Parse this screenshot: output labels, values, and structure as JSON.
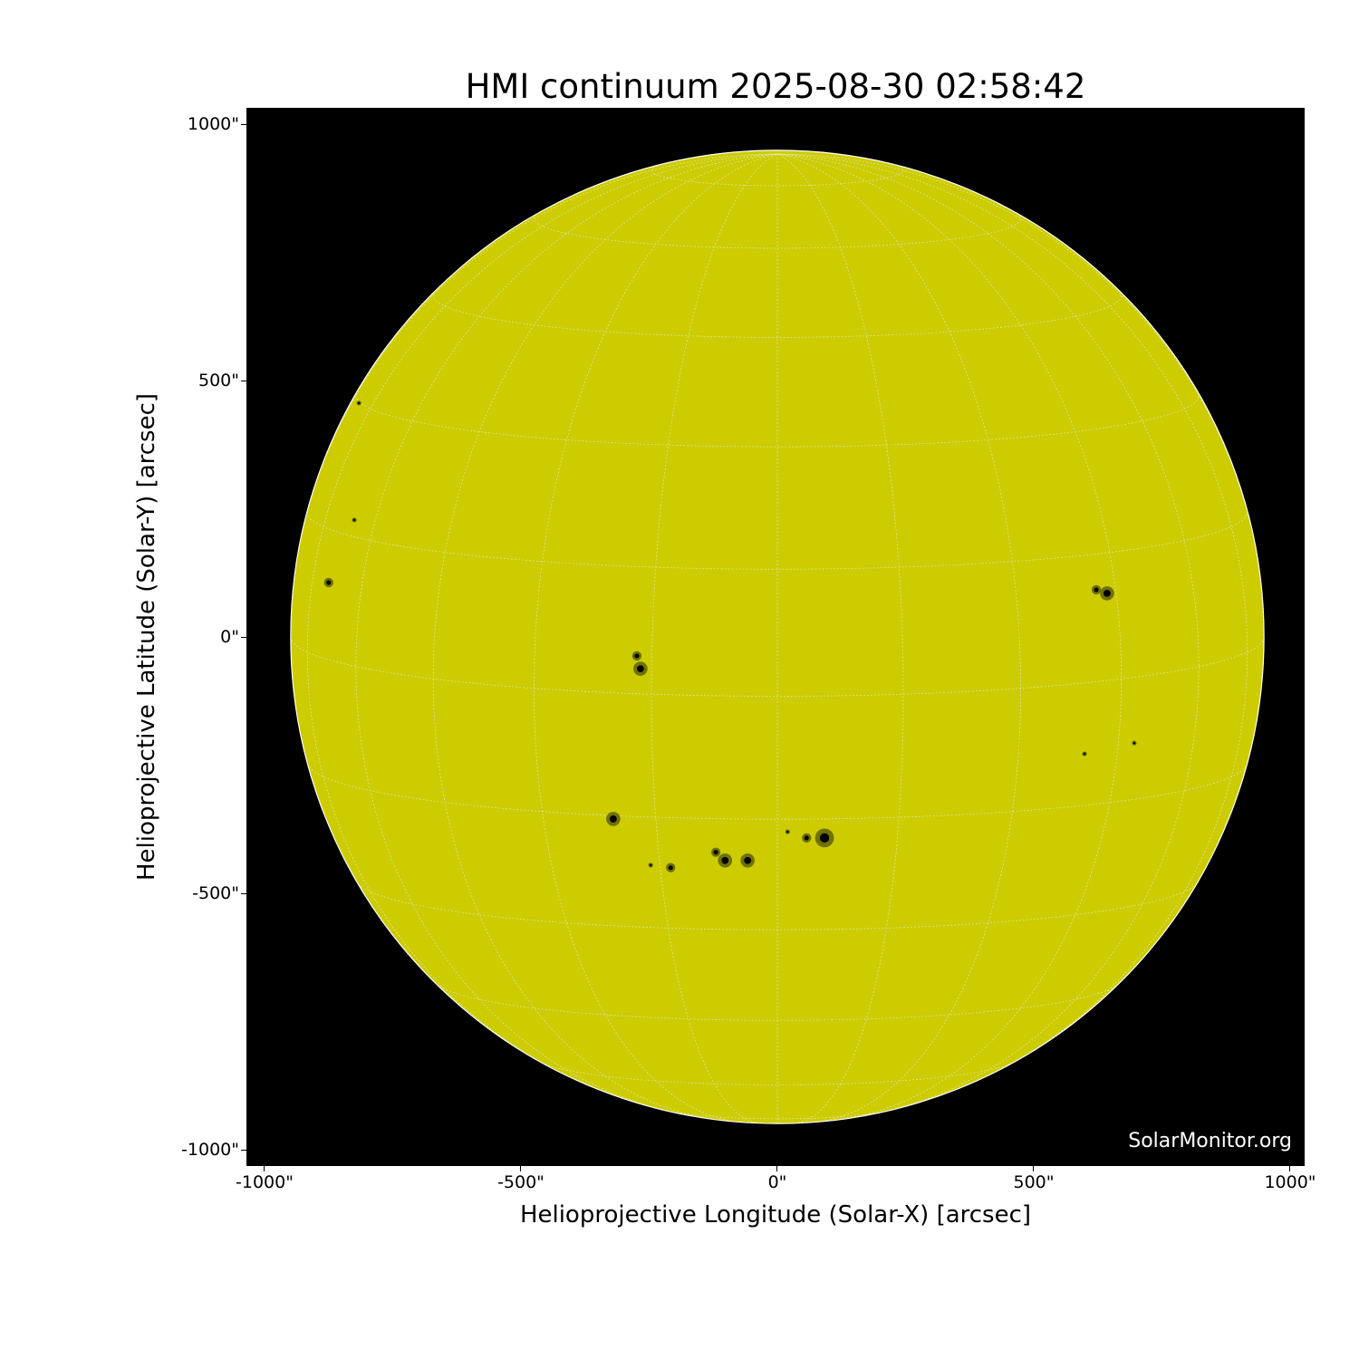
{
  "chart_data": {
    "type": "image",
    "title": "HMI continuum 2025-08-30 02:58:42",
    "xlabel": "Helioprojective Longitude (Solar-X) [arcsec]",
    "ylabel": "Helioprojective Latitude (Solar-Y) [arcsec]",
    "xlim": [
      -1030,
      1030
    ],
    "ylim": [
      -1030,
      1030
    ],
    "xticks": [
      "-1000\"",
      "-500\"",
      "0\"",
      "500\"",
      "1000\""
    ],
    "xtick_values": [
      -1000,
      -500,
      0,
      500,
      1000
    ],
    "yticks": [
      "1000\"",
      "500\"",
      "0\"",
      "-500\"",
      "-1000\""
    ],
    "ytick_values": [
      1000,
      500,
      0,
      -500,
      -1000
    ],
    "solar_radius_arcsec": 949,
    "grid": "heliographic, 15 degree spacing",
    "disk_color": "#cccc00",
    "background_color": "#000000",
    "sunspots_arcsec": [
      {
        "x": 643,
        "y": 85,
        "size": 3
      },
      {
        "x": 622,
        "y": 92,
        "size": 2
      },
      {
        "x": -267,
        "y": -62,
        "size": 3
      },
      {
        "x": -274,
        "y": -37,
        "size": 2
      },
      {
        "x": -320,
        "y": -355,
        "size": 3
      },
      {
        "x": 92,
        "y": -392,
        "size": 4
      },
      {
        "x": 57,
        "y": -392,
        "size": 2
      },
      {
        "x": 20,
        "y": -380,
        "size": 1
      },
      {
        "x": -102,
        "y": -436,
        "size": 3
      },
      {
        "x": -58,
        "y": -436,
        "size": 3
      },
      {
        "x": -120,
        "y": -420,
        "size": 2
      },
      {
        "x": -208,
        "y": -450,
        "size": 2
      },
      {
        "x": -247,
        "y": -445,
        "size": 1
      },
      {
        "x": -875,
        "y": 106,
        "size": 2
      },
      {
        "x": -825,
        "y": 228,
        "size": 1
      },
      {
        "x": -816,
        "y": 456,
        "size": 1
      },
      {
        "x": 599,
        "y": -228,
        "size": 1
      },
      {
        "x": 696,
        "y": -207,
        "size": 1
      }
    ]
  },
  "watermark": "SolarMonitor.org"
}
